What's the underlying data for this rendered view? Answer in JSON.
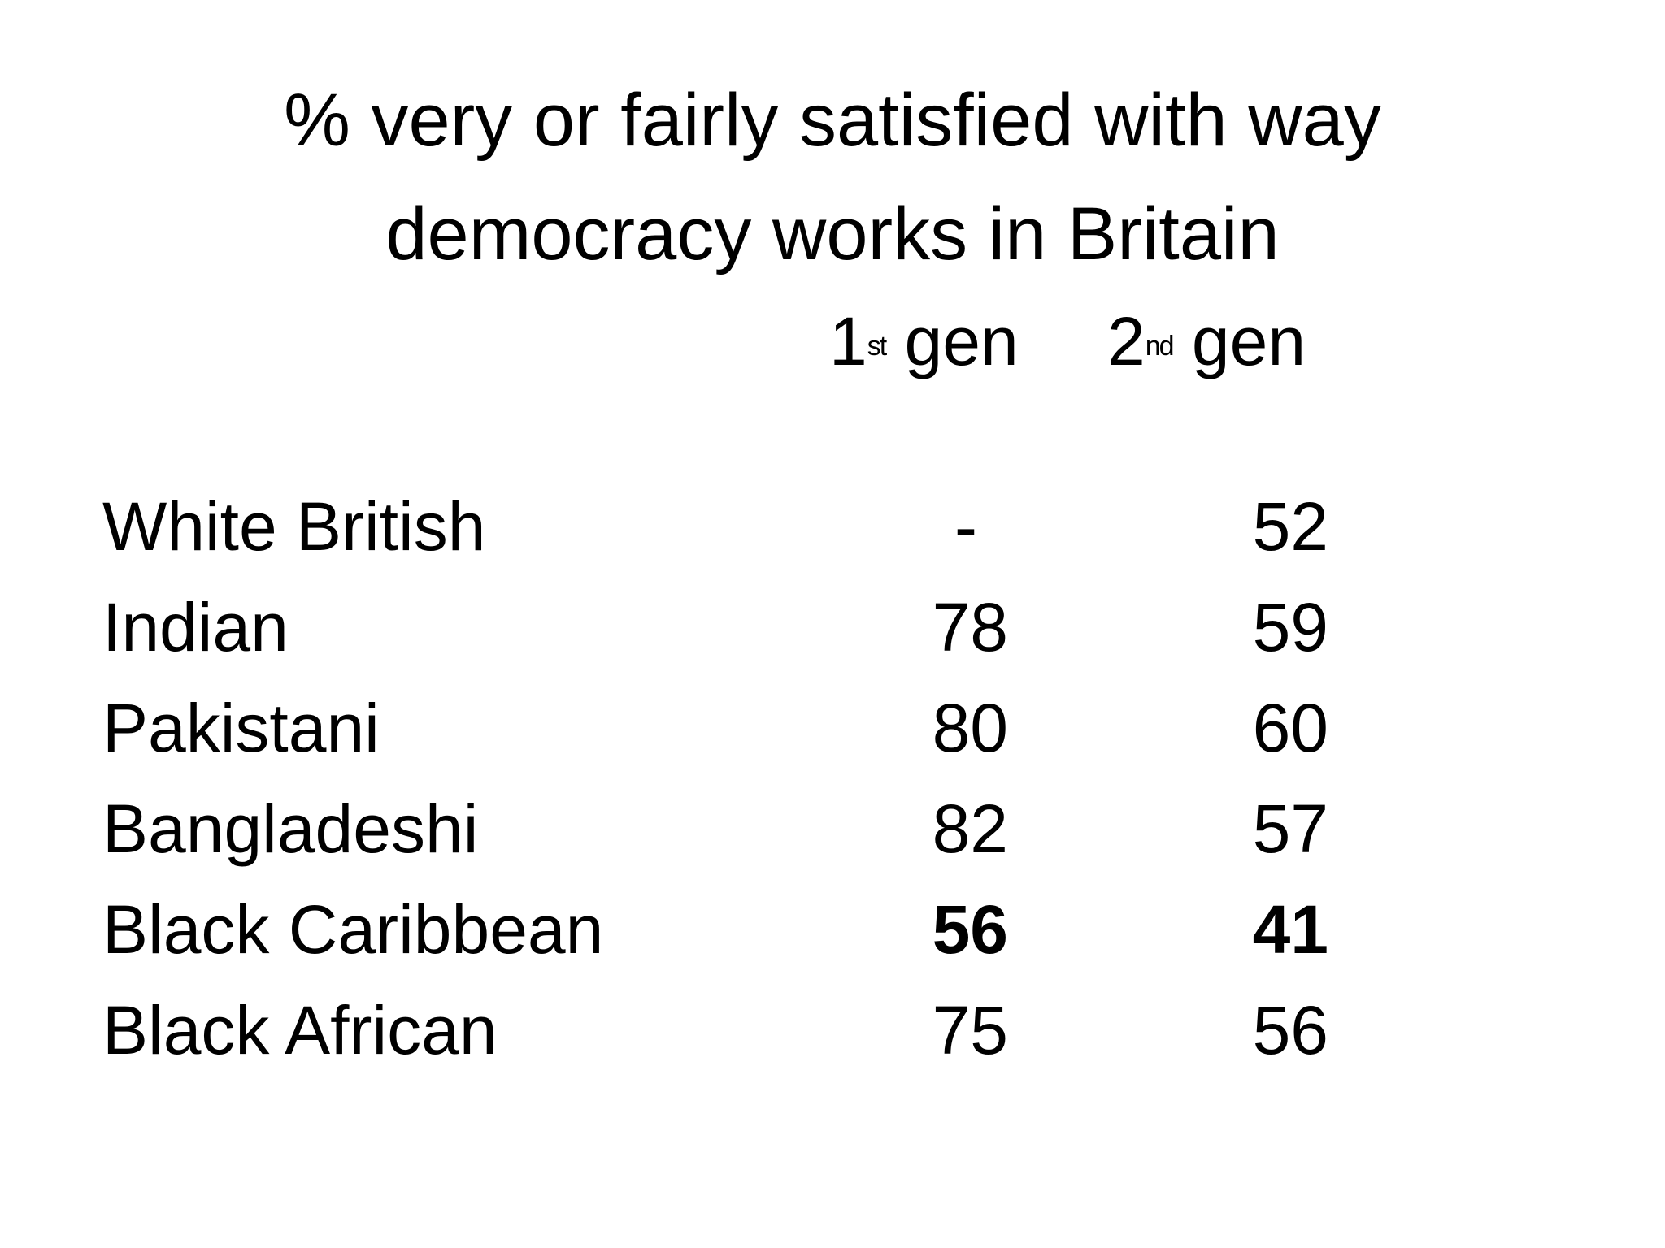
{
  "title": {
    "line1": "% very or fairly satisfied with way",
    "line2": "democracy works in Britain"
  },
  "columns": {
    "gen1": {
      "num": "1",
      "suffix": "st",
      "word": "gen"
    },
    "gen2": {
      "num": "2",
      "suffix": "nd",
      "word": "gen"
    }
  },
  "rows": [
    {
      "label": "White British",
      "gen1": "-",
      "gen2": "52"
    },
    {
      "label": "Indian",
      "gen1": "78",
      "gen2": "59"
    },
    {
      "label": "Pakistani",
      "gen1": "80",
      "gen2": "60"
    },
    {
      "label": "Bangladeshi",
      "gen1": "82",
      "gen2": "57"
    },
    {
      "label": "Black Caribbean",
      "gen1": "56",
      "gen2": "41"
    },
    {
      "label": "Black African",
      "gen1": "75",
      "gen2": "56"
    }
  ]
}
